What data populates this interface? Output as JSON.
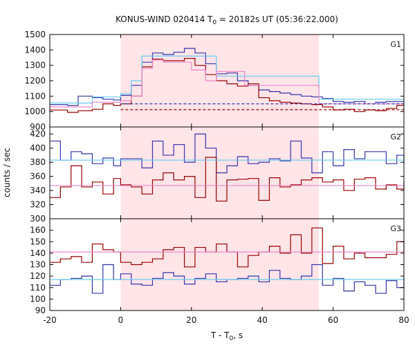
{
  "chart_data": {
    "type": "line",
    "title": "KONUS-WIND 020414 T",
    "title_sub": "0",
    "title_rest": " = 20182s UT (05:36:22.000)",
    "xlabel": "T - T",
    "xlabel_sub": "0",
    "xlabel_rest": ", s",
    "ylabel": "counts / sec",
    "xlim": [
      -20,
      80
    ],
    "x_ticks": [
      -20,
      0,
      20,
      40,
      60,
      80
    ],
    "highlight_interval": [
      0,
      56
    ],
    "colors": {
      "blue": "#3333aa",
      "darkred": "#990000",
      "lightblue": "#66ccee",
      "pink": "#ee88cc",
      "highlight": "#ffe4e8"
    },
    "panels": [
      {
        "name": "G1",
        "ylim": [
          900,
          1500
        ],
        "y_ticks": [
          900,
          1000,
          1100,
          1200,
          1300,
          1400,
          1500
        ],
        "series": [
          {
            "color": "blue",
            "style": "step",
            "edges": [
              -20,
              -15,
              -12,
              -8,
              -5,
              -2,
              0,
              3,
              6,
              9,
              12,
              15,
              18,
              21,
              24,
              27,
              30,
              33,
              36,
              39,
              42,
              45,
              48,
              51,
              54,
              57,
              60,
              63,
              66,
              69,
              72,
              75,
              78,
              80
            ],
            "values": [
              1045,
              1040,
              1100,
              1090,
              1080,
              1075,
              1105,
              1170,
              1320,
              1380,
              1370,
              1385,
              1410,
              1380,
              1310,
              1245,
              1250,
              1200,
              1170,
              1140,
              1130,
              1120,
              1110,
              1100,
              1095,
              1085,
              1065,
              1060,
              1065,
              1050,
              1060,
              1065,
              1065
            ]
          },
          {
            "color": "darkred",
            "style": "step",
            "edges": [
              -20,
              -15,
              -12,
              -8,
              -5,
              -2,
              0,
              3,
              6,
              9,
              12,
              15,
              18,
              21,
              24,
              27,
              30,
              33,
              36,
              39,
              42,
              45,
              48,
              51,
              54,
              57,
              60,
              63,
              66,
              69,
              72,
              75,
              78,
              80
            ],
            "values": [
              1010,
              995,
              1005,
              1015,
              1050,
              1040,
              1050,
              1100,
              1290,
              1340,
              1330,
              1330,
              1345,
              1300,
              1240,
              1200,
              1180,
              1165,
              1180,
              1090,
              1070,
              1060,
              1055,
              1050,
              1045,
              1030,
              1010,
              1015,
              1000,
              1010,
              1005,
              1020,
              1040
            ]
          },
          {
            "color": "lightblue",
            "style": "step",
            "edges": [
              -20,
              -8,
              0,
              3,
              6,
              27,
              56,
              80
            ],
            "values": [
              1055,
              1095,
              1115,
              1200,
              1360,
              1230,
              1080,
              1050
            ]
          },
          {
            "color": "pink",
            "style": "step",
            "edges": [
              -20,
              -8,
              0,
              3,
              6,
              9,
              12,
              20,
              24,
              27,
              35,
              56,
              80
            ],
            "values": [
              1030,
              1060,
              1070,
              1100,
              1280,
              1335,
              1320,
              1270,
              1200,
              1260,
              1170,
              1050,
              1000
            ]
          },
          {
            "color": "blue",
            "style": "dashed",
            "x": [
              0,
              80
            ],
            "y": [
              1050,
              1050
            ]
          },
          {
            "color": "darkred",
            "style": "dashed",
            "x": [
              0,
              80
            ],
            "y": [
              1012,
              1012
            ]
          }
        ]
      },
      {
        "name": "G2",
        "ylim": [
          300,
          430
        ],
        "y_ticks": [
          300,
          320,
          340,
          360,
          380,
          400,
          420
        ],
        "series": [
          {
            "color": "blue",
            "style": "step",
            "edges": [
              -20,
              -17,
              -14,
              -11,
              -8,
              -5,
              -2,
              0,
              3,
              6,
              9,
              12,
              15,
              18,
              21,
              24,
              27,
              30,
              33,
              36,
              39,
              42,
              45,
              48,
              51,
              54,
              57,
              60,
              63,
              66,
              69,
              72,
              75,
              78,
              80
            ],
            "values": [
              410,
              383,
              395,
              392,
              378,
              386,
              375,
              385,
              385,
              372,
              410,
              390,
              405,
              380,
              420,
              400,
              365,
              375,
              388,
              378,
              380,
              385,
              382,
              410,
              386,
              365,
              395,
              375,
              398,
              385,
              395,
              395,
              378,
              390,
              378
            ]
          },
          {
            "color": "darkred",
            "style": "step",
            "edges": [
              -20,
              -17,
              -14,
              -11,
              -8,
              -5,
              -2,
              0,
              3,
              6,
              9,
              12,
              15,
              18,
              21,
              24,
              27,
              30,
              33,
              36,
              39,
              42,
              45,
              48,
              51,
              54,
              57,
              60,
              63,
              66,
              69,
              72,
              75,
              78,
              80
            ],
            "values": [
              330,
              345,
              375,
              345,
              352,
              335,
              357,
              348,
              345,
              335,
              355,
              365,
              355,
              360,
              330,
              387,
              325,
              355,
              356,
              357,
              326,
              358,
              345,
              348,
              355,
              358,
              352,
              355,
              340,
              356,
              358,
              342,
              348,
              342,
              353
            ]
          },
          {
            "color": "lightblue",
            "style": "flat",
            "x": [
              -20,
              80
            ],
            "y": [
              383,
              383
            ]
          },
          {
            "color": "pink",
            "style": "flat",
            "x": [
              -20,
              80
            ],
            "y": [
              347,
              347
            ]
          }
        ]
      },
      {
        "name": "G3",
        "ylim": [
          90,
          170
        ],
        "y_ticks": [
          90,
          100,
          110,
          120,
          130,
          140,
          150,
          160
        ],
        "series": [
          {
            "color": "blue",
            "style": "step",
            "edges": [
              -20,
              -17,
              -14,
              -11,
              -8,
              -5,
              -2,
              0,
              3,
              6,
              9,
              12,
              15,
              18,
              21,
              24,
              27,
              30,
              33,
              36,
              39,
              42,
              45,
              48,
              51,
              54,
              57,
              60,
              63,
              66,
              69,
              72,
              75,
              78,
              80
            ],
            "values": [
              112,
              117,
              118,
              120,
              105,
              130,
              117,
              122,
              113,
              112,
              118,
              123,
              120,
              113,
              118,
              122,
              115,
              117,
              118,
              120,
              115,
              125,
              118,
              117,
              120,
              130,
              112,
              118,
              107,
              115,
              112,
              105,
              116,
              110,
              119
            ]
          },
          {
            "color": "darkred",
            "style": "step",
            "edges": [
              -20,
              -17,
              -14,
              -11,
              -8,
              -5,
              -2,
              0,
              3,
              6,
              9,
              12,
              15,
              18,
              21,
              24,
              27,
              30,
              33,
              36,
              39,
              42,
              45,
              48,
              51,
              54,
              57,
              60,
              63,
              66,
              69,
              72,
              75,
              78,
              80
            ],
            "values": [
              132,
              135,
              137,
              132,
              148,
              143,
              141,
              132,
              130,
              132,
              135,
              143,
              145,
              128,
              145,
              141,
              148,
              141,
              128,
              138,
              141,
              146,
              140,
              156,
              140,
              162,
              131,
              146,
              135,
              140,
              136,
              136,
              139,
              150,
              140
            ]
          },
          {
            "color": "lightblue",
            "style": "flat",
            "x": [
              -20,
              80
            ],
            "y": [
              117,
              117
            ]
          },
          {
            "color": "pink",
            "style": "flat",
            "x": [
              -20,
              80
            ],
            "y": [
              141,
              141
            ]
          }
        ]
      }
    ]
  }
}
